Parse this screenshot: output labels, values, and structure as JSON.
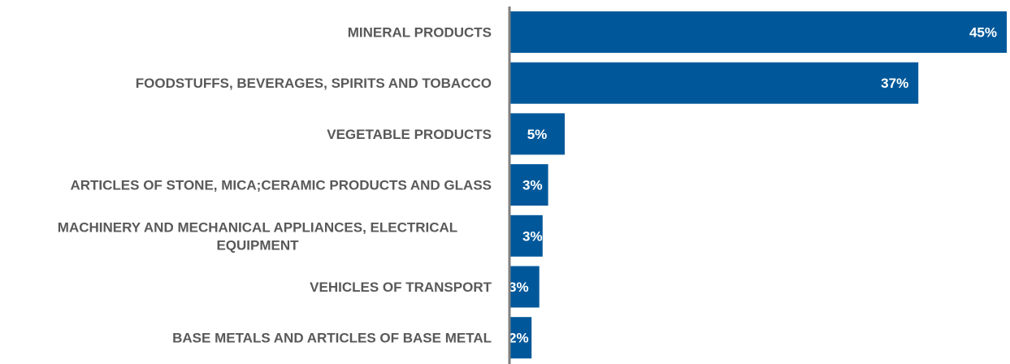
{
  "chart_data": {
    "type": "bar",
    "orientation": "horizontal",
    "categories": [
      "MINERAL PRODUCTS",
      "FOODSTUFFS, BEVERAGES, SPIRITS AND TOBACCO",
      "VEGETABLE PRODUCTS",
      "ARTICLES OF STONE, MICA;CERAMIC PRODUCTS AND GLASS",
      "MACHINERY AND MECHANICAL APPLIANCES, ELECTRICAL EQUIPMENT",
      "VEHICLES OF TRANSPORT",
      "BASE METALS AND ARTICLES OF BASE METAL"
    ],
    "category_lines": [
      [
        "MINERAL PRODUCTS"
      ],
      [
        "FOODSTUFFS, BEVERAGES, SPIRITS AND TOBACCO"
      ],
      [
        "VEGETABLE PRODUCTS"
      ],
      [
        "ARTICLES OF STONE, MICA;CERAMIC PRODUCTS AND GLASS"
      ],
      [
        "MACHINERY AND MECHANICAL APPLIANCES, ELECTRICAL",
        "EQUIPMENT"
      ],
      [
        "VEHICLES OF TRANSPORT"
      ],
      [
        "BASE METALS AND ARTICLES OF BASE METAL"
      ]
    ],
    "values": [
      45,
      37,
      5,
      3,
      3,
      3,
      2
    ],
    "value_labels": [
      "45%",
      "37%",
      "5%",
      "3%",
      "3%",
      "3%",
      "2%"
    ],
    "value_precise": [
      45,
      37,
      5,
      3.5,
      3.0,
      2.7,
      2.0
    ],
    "xlim": [
      0,
      45
    ],
    "bar_color": "#00589a",
    "axis_color": "#7f7f7f",
    "label_color": "#595959",
    "grid": false,
    "legend": "none"
  }
}
